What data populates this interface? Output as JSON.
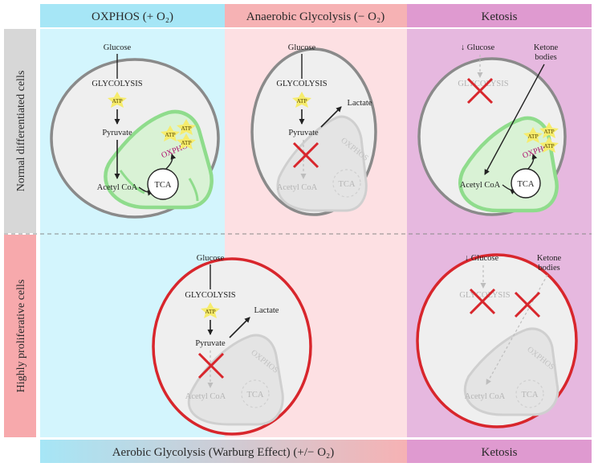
{
  "columns": [
    {
      "title": "OXPHOS (+ O₂)",
      "color": "#a6e6f6"
    },
    {
      "title": "Anaerobic Glycolysis (− O₂)",
      "color": "#f6b2b4"
    },
    {
      "title": "Ketosis",
      "color": "#df9ad0"
    }
  ],
  "rows": [
    {
      "title": "Normal differentiated cells",
      "color": "#d7d7d7"
    },
    {
      "title": "Highly proliferative cells",
      "color": "#f7a9ac"
    }
  ],
  "footer": {
    "left": "Aerobic Glycolysis (Warburg Effect) (+/− O₂)",
    "right": "Ketosis"
  },
  "labels": {
    "glucose": "Glucose",
    "glucose_down": "↓ Glucose",
    "glycolysis": "GLYCOLYSIS",
    "atp": "ATP",
    "pyruvate": "Pyruvate",
    "lactate": "Lactate",
    "acetyl_coa": "Acetyl CoA",
    "tca": "TCA",
    "oxphos": "OXPHOS",
    "ketone_1": "Ketone",
    "ketone_2": "bodies"
  },
  "colors": {
    "cell_normal_border": "#8a8a8a",
    "cell_prolif_border": "#d8262c",
    "mito_fill": "#d9f2d5",
    "mito_border": "#8fdc8c",
    "atp_star": "#f6ec6c",
    "block_x": "#d8262c",
    "oxphos_text": "#b01070"
  }
}
